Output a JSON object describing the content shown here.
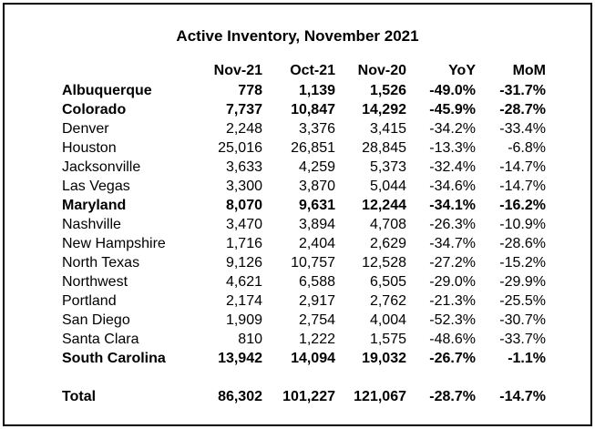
{
  "title": "Active Inventory, November 2021",
  "columns": [
    "",
    "Nov-21",
    "Oct-21",
    "Nov-20",
    "YoY",
    "MoM"
  ],
  "rows": [
    {
      "name": "Albuquerque",
      "nov21": "778",
      "oct21": "1,139",
      "nov20": "1,526",
      "yoy": "-49.0%",
      "mom": "-31.7%",
      "bold": true
    },
    {
      "name": "Colorado",
      "nov21": "7,737",
      "oct21": "10,847",
      "nov20": "14,292",
      "yoy": "-45.9%",
      "mom": "-28.7%",
      "bold": true
    },
    {
      "name": "Denver",
      "nov21": "2,248",
      "oct21": "3,376",
      "nov20": "3,415",
      "yoy": "-34.2%",
      "mom": "-33.4%",
      "bold": false
    },
    {
      "name": "Houston",
      "nov21": "25,016",
      "oct21": "26,851",
      "nov20": "28,845",
      "yoy": "-13.3%",
      "mom": "-6.8%",
      "bold": false
    },
    {
      "name": "Jacksonville",
      "nov21": "3,633",
      "oct21": "4,259",
      "nov20": "5,373",
      "yoy": "-32.4%",
      "mom": "-14.7%",
      "bold": false
    },
    {
      "name": "Las Vegas",
      "nov21": "3,300",
      "oct21": "3,870",
      "nov20": "5,044",
      "yoy": "-34.6%",
      "mom": "-14.7%",
      "bold": false
    },
    {
      "name": "Maryland",
      "nov21": "8,070",
      "oct21": "9,631",
      "nov20": "12,244",
      "yoy": "-34.1%",
      "mom": "-16.2%",
      "bold": true
    },
    {
      "name": "Nashville",
      "nov21": "3,470",
      "oct21": "3,894",
      "nov20": "4,708",
      "yoy": "-26.3%",
      "mom": "-10.9%",
      "bold": false
    },
    {
      "name": "New Hampshire",
      "nov21": "1,716",
      "oct21": "2,404",
      "nov20": "2,629",
      "yoy": "-34.7%",
      "mom": "-28.6%",
      "bold": false
    },
    {
      "name": "North Texas",
      "nov21": "9,126",
      "oct21": "10,757",
      "nov20": "12,528",
      "yoy": "-27.2%",
      "mom": "-15.2%",
      "bold": false
    },
    {
      "name": "Northwest",
      "nov21": "4,621",
      "oct21": "6,588",
      "nov20": "6,505",
      "yoy": "-29.0%",
      "mom": "-29.9%",
      "bold": false
    },
    {
      "name": "Portland",
      "nov21": "2,174",
      "oct21": "2,917",
      "nov20": "2,762",
      "yoy": "-21.3%",
      "mom": "-25.5%",
      "bold": false
    },
    {
      "name": "San Diego",
      "nov21": "1,909",
      "oct21": "2,754",
      "nov20": "4,004",
      "yoy": "-52.3%",
      "mom": "-30.7%",
      "bold": false
    },
    {
      "name": "Santa Clara",
      "nov21": "810",
      "oct21": "1,222",
      "nov20": "1,575",
      "yoy": "-48.6%",
      "mom": "-33.7%",
      "bold": false
    },
    {
      "name": "South Carolina",
      "nov21": "13,942",
      "oct21": "14,094",
      "nov20": "19,032",
      "yoy": "-26.7%",
      "mom": "-1.1%",
      "bold": true
    }
  ],
  "total": {
    "name": "Total",
    "nov21": "86,302",
    "oct21": "101,227",
    "nov20": "121,067",
    "yoy": "-28.7%",
    "mom": "-14.7%"
  }
}
